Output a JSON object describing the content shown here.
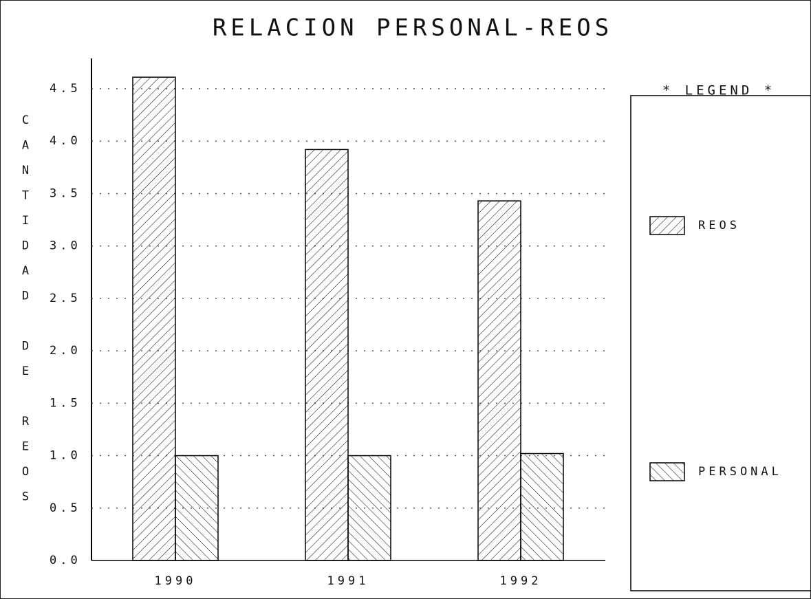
{
  "chart_data": {
    "type": "bar",
    "title": "RELACION PERSONAL-REOS",
    "y_label": "CANTIDAD DE REOS",
    "legend_title": "* LEGEND *",
    "categories": [
      "1990",
      "1991",
      "1992"
    ],
    "series": [
      {
        "name": "REOS",
        "color": "#000000",
        "values": [
          4.61,
          3.92,
          3.43
        ]
      },
      {
        "name": "PERSONAL",
        "color": "#000000",
        "values": [
          1.0,
          1.0,
          1.02
        ]
      }
    ],
    "ylim": [
      0,
      4.5
    ],
    "yticks": [
      {
        "value": 0,
        "label": "0.0"
      },
      {
        "value": 0.5,
        "label": "0.5"
      },
      {
        "value": 1,
        "label": "1.0"
      },
      {
        "value": 1.5,
        "label": "1.5"
      },
      {
        "value": 2,
        "label": "2.0"
      },
      {
        "value": 2.5,
        "label": "2.5"
      },
      {
        "value": 3,
        "label": "3.0"
      },
      {
        "value": 3.5,
        "label": "3.5"
      },
      {
        "value": 4,
        "label": "4.0"
      },
      {
        "value": 4.5,
        "label": "4.5"
      }
    ],
    "grid": true,
    "legend": "right"
  }
}
